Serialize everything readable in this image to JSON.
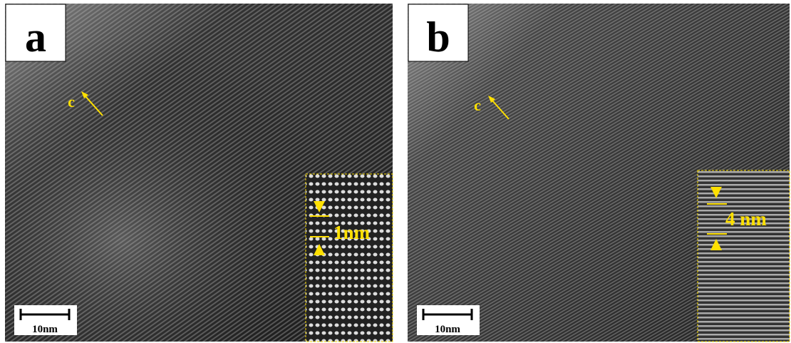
{
  "panels": [
    {
      "label": "a",
      "axis_label": "c",
      "scale_bar": "10nm",
      "inset_label": "1nm"
    },
    {
      "label": "b",
      "axis_label": "c",
      "scale_bar": "10nm",
      "inset_label": "4 nm"
    }
  ]
}
